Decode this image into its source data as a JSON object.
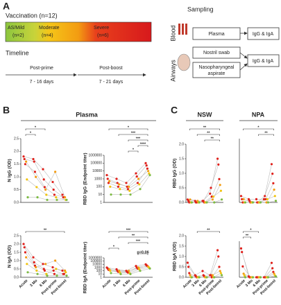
{
  "panel_a": {
    "label": "A",
    "vaccination": "Vaccination (n=12)",
    "groups": [
      "AS/Mild",
      "(n=2)",
      "Moderate",
      "(n=4)",
      "Severe",
      "(n=6)"
    ],
    "timeline": "Timeline",
    "post_prime": "Post-prime",
    "post_prime_days": "7 - 16 days",
    "post_boost": "Post-boost",
    "post_boost_days": "7 - 21 days",
    "sampling": "Sampling",
    "blood": "Blood",
    "airways": "Airways",
    "plasma": "Plasma",
    "nostril": "Nostril swab",
    "npa": "Nasopharyngeal",
    "npa2": "aspirate",
    "out": "IgG & IgA"
  },
  "panel_b": {
    "label": "B",
    "title": "Plasma"
  },
  "panel_c": {
    "label": "C",
    "nsw": "NSW",
    "npa": "NPA"
  },
  "chart_data": [
    {
      "type": "scatter",
      "ylabel": "N IgG (OD)",
      "ylim": [
        0,
        2.5
      ],
      "yticks": [
        {
          "value": 0,
          "label": "0.0"
        },
        0.5,
        {
          "value": 1,
          "label": "1.0"
        },
        1.5,
        {
          "value": 2,
          "label": "2.0"
        },
        2.5
      ],
      "series": [
        {
          "color": "#e0201b",
          "values": [
            1.8,
            1.7,
            1.3,
            0.8,
            0.3
          ]
        },
        {
          "color": "#e0201b",
          "values": [
            1.7,
            1.6,
            0.9,
            0.5,
            0.2
          ]
        },
        {
          "color": "#e0201b",
          "values": [
            1.5,
            1.2,
            0.6,
            0.3,
            0.2
          ]
        },
        {
          "color": "#f39c12",
          "values": [
            1.6,
            1.0,
            0.5,
            1.2,
            0.2
          ]
        },
        {
          "color": "#f1c40f",
          "values": [
            0.9,
            0.6,
            0.3,
            0.2,
            0.1
          ]
        },
        {
          "color": "#7dbb42",
          "values": [
            0.2,
            0.2,
            0.1,
            0.1,
            0.1
          ]
        }
      ],
      "annotations": [
        {
          "from": 0,
          "to": 2,
          "label": "*"
        },
        {
          "from": 0,
          "to": 1,
          "label": "*"
        }
      ]
    },
    {
      "type": "scatter",
      "ylabel": "RBD IgG (Endpoint titer)",
      "log": true,
      "ylim": [
        1,
        1000000
      ],
      "yticks": [
        1,
        10,
        100,
        1000,
        10000,
        100000,
        1000000
      ],
      "series": [
        {
          "color": "#e0201b",
          "values": [
            3000,
            1000,
            300,
            5000,
            100000
          ]
        },
        {
          "color": "#e0201b",
          "values": [
            1000,
            300,
            100,
            2000,
            50000
          ]
        },
        {
          "color": "#e0201b",
          "values": [
            300,
            100,
            50,
            300,
            20000
          ]
        },
        {
          "color": "#f39c12",
          "values": [
            500,
            200,
            100,
            1000,
            10000
          ]
        },
        {
          "color": "#f1c40f",
          "values": [
            100,
            50,
            30,
            200,
            5000
          ]
        },
        {
          "color": "#7dbb42",
          "values": [
            10,
            10,
            10,
            50,
            3000
          ]
        }
      ],
      "annotations": [
        {
          "from": 0,
          "to": 4,
          "label": "*"
        },
        {
          "from": 1,
          "to": 4,
          "label": "***"
        },
        {
          "from": 2,
          "to": 4,
          "label": "***"
        },
        {
          "from": 3,
          "to": 4,
          "label": "****"
        },
        {
          "from": 2,
          "to": 3,
          "label": "*"
        }
      ]
    },
    {
      "type": "scatter",
      "ylabel": "N IgA (OD)",
      "ylim": [
        0,
        2.5
      ],
      "yticks": [
        {
          "value": 0,
          "label": "0.0"
        },
        0.5,
        {
          "value": 1,
          "label": "1.0"
        },
        1.5,
        {
          "value": 2,
          "label": "2.0"
        },
        2.5
      ],
      "categories": [
        "Acute",
        "3 Mo",
        "6 Mo",
        "Post-prime",
        "Post-boost"
      ],
      "series": [
        {
          "color": "#e0201b",
          "values": [
            2.0,
            1.2,
            0.8,
            0.6,
            0.4
          ]
        },
        {
          "color": "#e0201b",
          "values": [
            1.8,
            0.9,
            0.5,
            0.4,
            0.2
          ]
        },
        {
          "color": "#e0201b",
          "values": [
            1.5,
            0.7,
            0.4,
            0.2,
            0.2
          ]
        },
        {
          "color": "#f39c12",
          "values": [
            1.2,
            0.6,
            0.8,
            1.0,
            0.4
          ]
        },
        {
          "color": "#f1c40f",
          "values": [
            0.8,
            0.4,
            0.2,
            0.5,
            0.3
          ]
        },
        {
          "color": "#7dbb42",
          "values": [
            0.3,
            0.2,
            0.1,
            0.1,
            0.1
          ]
        }
      ],
      "annotations": [
        {
          "from": 0,
          "to": 4,
          "label": "**"
        }
      ]
    },
    {
      "type": "scatter",
      "ylabel": "RBD IgA (Endpoint titer)",
      "log": true,
      "ylim": [
        1,
        1000000
      ],
      "yticks": [
        1,
        10,
        100,
        1000,
        10000,
        100000,
        1000000
      ],
      "categories": [
        "Acute",
        "3 Mo",
        "6 Mo",
        "Post-prime",
        "Post-boost"
      ],
      "series": [
        {
          "color": "#e0201b",
          "values": [
            1000,
            300,
            100,
            3000,
            10000
          ]
        },
        {
          "color": "#e0201b",
          "values": [
            500,
            100,
            50,
            1000,
            5000
          ]
        },
        {
          "color": "#e0201b",
          "values": [
            200,
            50,
            30,
            500,
            3000
          ]
        },
        {
          "color": "#f39c12",
          "values": [
            300,
            100,
            100,
            1000,
            2000
          ]
        },
        {
          "color": "#f1c40f",
          "values": [
            100,
            30,
            20,
            300,
            1000
          ]
        },
        {
          "color": "#7dbb42",
          "values": [
            20,
            10,
            10,
            100,
            500
          ]
        }
      ],
      "annotations": [
        {
          "from": 0,
          "to": 4,
          "label": "***"
        },
        {
          "from": 1,
          "to": 4,
          "label": "**"
        },
        {
          "from": 2,
          "to": 4,
          "label": "***"
        },
        {
          "from": 0,
          "to": 1,
          "label": "*"
        },
        {
          "from": 3,
          "to": 4,
          "label": "p=0.06"
        }
      ]
    },
    {
      "type": "scatter",
      "ylabel": "RBD IgG (OD)",
      "ylim": [
        0,
        2
      ],
      "yticks": [
        {
          "value": 0,
          "label": "0.0"
        },
        0.5,
        {
          "value": 1,
          "label": "1.0"
        },
        1.5,
        {
          "value": 2,
          "label": "2.0"
        }
      ],
      "series": [
        {
          "color": "#e0201b",
          "values": [
            0.1,
            0.05,
            0.05,
            0.3,
            1.5
          ]
        },
        {
          "color": "#e0201b",
          "values": [
            0.05,
            0,
            0.05,
            0.5,
            1.3
          ]
        },
        {
          "color": "#e0201b",
          "values": [
            0,
            0,
            0,
            0.2,
            0.8
          ]
        },
        {
          "color": "#f39c12",
          "values": [
            0.1,
            0.05,
            0,
            0.1,
            0.6
          ]
        },
        {
          "color": "#f1c40f",
          "values": [
            0,
            0,
            0,
            0.2,
            0.4
          ]
        },
        {
          "color": "#7dbb42",
          "values": [
            0,
            0,
            0,
            0,
            0.1
          ]
        }
      ],
      "annotations": [
        {
          "from": 0,
          "to": 4,
          "label": "**"
        },
        {
          "from": 1,
          "to": 4,
          "label": "**"
        },
        {
          "from": 2,
          "to": 4,
          "label": "**"
        }
      ]
    },
    {
      "type": "scatter",
      "ylim": [
        0,
        2
      ],
      "series": [
        {
          "color": "#e0201b",
          "values": [
            0.2,
            0.1,
            0.1,
            0.1,
            1.2
          ]
        },
        {
          "color": "#e0201b",
          "values": [
            0.1,
            0.05,
            0,
            0.2,
            0.9
          ]
        },
        {
          "color": "#e0201b",
          "values": [
            0,
            0,
            0,
            0.1,
            0.6
          ]
        },
        {
          "color": "#f39c12",
          "values": [
            0.1,
            0,
            0,
            0,
            0.4
          ]
        },
        {
          "color": "#f1c40f",
          "values": [
            0,
            0,
            0,
            0.1,
            0.2
          ]
        },
        {
          "color": "#7dbb42",
          "values": [
            0,
            0,
            0,
            0,
            0.05
          ]
        }
      ],
      "annotations": [
        {
          "from": 0,
          "to": 4,
          "label": "*"
        },
        {
          "from": 2,
          "to": 4,
          "label": "**"
        }
      ]
    },
    {
      "type": "scatter",
      "ylabel": "RBD IgA (OD)",
      "ylim": [
        0,
        2
      ],
      "yticks": [
        {
          "value": 0,
          "label": "0.0"
        },
        0.5,
        {
          "value": 1,
          "label": "1.0"
        },
        1.5,
        {
          "value": 2,
          "label": "2.0"
        }
      ],
      "categories": [
        "Acute",
        "3 Mo",
        "6 Mo",
        "Post-prime",
        "Post-boost"
      ],
      "series": [
        {
          "color": "#e0201b",
          "values": [
            0.7,
            0.1,
            0.3,
            0.1,
            1.3
          ]
        },
        {
          "color": "#e0201b",
          "values": [
            0.5,
            0.05,
            0.1,
            0.1,
            1.0
          ]
        },
        {
          "color": "#e0201b",
          "values": [
            0.2,
            0,
            0.05,
            0,
            0.5
          ]
        },
        {
          "color": "#f39c12",
          "values": [
            0.1,
            0,
            0,
            0.1,
            0.3
          ]
        },
        {
          "color": "#f1c40f",
          "values": [
            0,
            0,
            0,
            0,
            0.2
          ]
        },
        {
          "color": "#7dbb42",
          "values": [
            0,
            0,
            0,
            0,
            0.1
          ]
        }
      ],
      "annotations": [
        {
          "from": 1,
          "to": 4,
          "label": "**"
        }
      ]
    },
    {
      "type": "scatter",
      "ylim": [
        0,
        2
      ],
      "categories": [
        "Acute",
        "3 Mo",
        "6 Mo",
        "Post-prime",
        "Post-boost"
      ],
      "series": [
        {
          "color": "#e0201b",
          "values": [
            1.6,
            0.05,
            0,
            0,
            0.8
          ]
        },
        {
          "color": "#e0201b",
          "values": [
            1.4,
            0,
            0,
            0,
            0.5
          ]
        },
        {
          "color": "#e0201b",
          "values": [
            0.6,
            0,
            0,
            0,
            0.3
          ]
        },
        {
          "color": "#f39c12",
          "values": [
            0.2,
            0,
            0,
            0,
            0.2
          ]
        },
        {
          "color": "#f1c40f",
          "values": [
            0.1,
            0,
            0,
            0,
            0.1
          ]
        },
        {
          "color": "#7dbb42",
          "values": [
            0,
            0,
            0,
            0,
            0.05
          ]
        }
      ],
      "annotations": [
        {
          "from": 0,
          "to": 2,
          "label": "*"
        },
        {
          "from": 0,
          "to": 1,
          "label": "**"
        }
      ]
    }
  ]
}
